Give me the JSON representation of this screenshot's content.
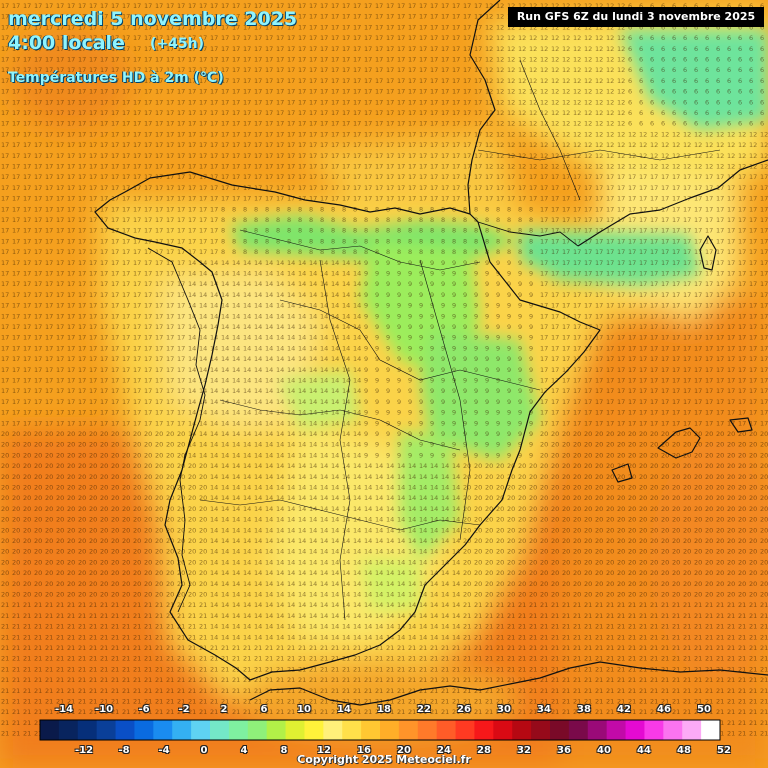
{
  "header": {
    "date": "mercredi 5 novembre 2025",
    "time": "4:00 locale",
    "offset": "(+45h)",
    "subtitle": "Températures HD à 2m (°C)"
  },
  "run_info": "Run GFS 6Z du lundi 3 novembre 2025",
  "copyright": "Copyright 2025 Meteociel.fr",
  "legend": {
    "top_labels": [
      "-14",
      "-10",
      "-6",
      "-2",
      "2",
      "6",
      "10",
      "14",
      "18",
      "22",
      "26",
      "30",
      "34",
      "38",
      "42",
      "46",
      "50"
    ],
    "bottom_labels": [
      "-12",
      "-8",
      "-4",
      "0",
      "4",
      "8",
      "12",
      "16",
      "20",
      "24",
      "28",
      "32",
      "36",
      "40",
      "44",
      "48",
      "52"
    ],
    "colors": [
      "#0a1a4a",
      "#08245e",
      "#062f7a",
      "#0a3f99",
      "#0a4fc6",
      "#0a6be0",
      "#1a8cf0",
      "#34b0f2",
      "#5fd2f2",
      "#74e8c8",
      "#7ff0a0",
      "#8ff07a",
      "#b2f048",
      "#dff032",
      "#fff23a",
      "#fff07a",
      "#ffe04a",
      "#ffc832",
      "#ffae28",
      "#ff942a",
      "#ff7a2a",
      "#ff5c28",
      "#ff3a22",
      "#f6181a",
      "#da0a14",
      "#b60812",
      "#960a1a",
      "#7a0a28",
      "#7a0a4a",
      "#9a0a78",
      "#c20aa8",
      "#e40ad2",
      "#f83ae8",
      "#fb74f0",
      "#fcaaf6",
      "#ffffff"
    ]
  },
  "colors": {
    "title_text": "#8ff4ff",
    "background_warm": "#f59a1e",
    "borders": "#111111"
  }
}
